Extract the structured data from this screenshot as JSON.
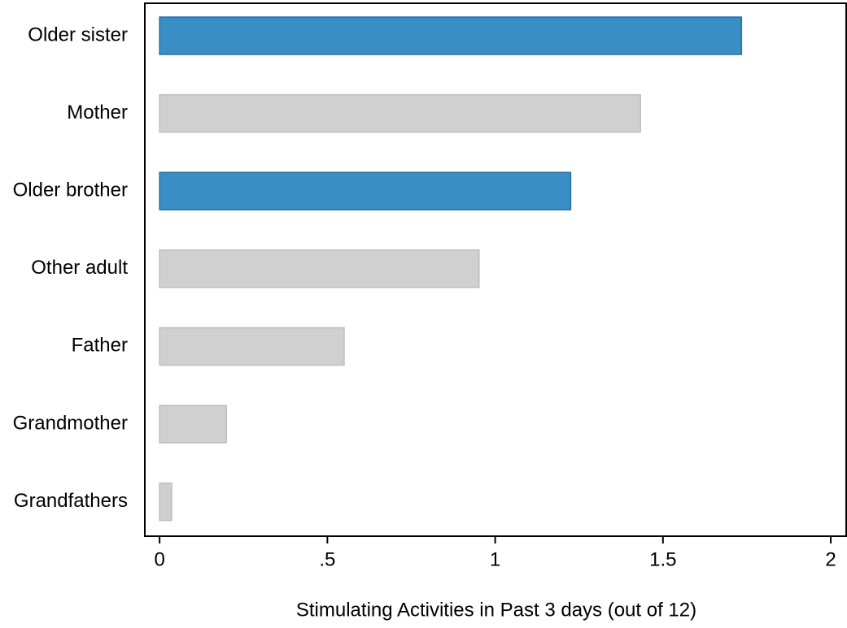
{
  "chart_data": {
    "type": "bar",
    "orientation": "horizontal",
    "x_label": "Stimulating Activities in Past 3 days (out of 12)",
    "categories": [
      "Older sister",
      "Mother",
      "Older brother",
      "Other adult",
      "Father",
      "Grandmother",
      "Grandfathers"
    ],
    "values": [
      1.734,
      1.433,
      1.225,
      0.952,
      0.55,
      0.199,
      0.036
    ],
    "colors": [
      "#3a8ec6",
      "#d0d0d0",
      "#3a8ec6",
      "#d0d0d0",
      "#d0d0d0",
      "#d0d0d0",
      "#d0d0d0"
    ],
    "xlim": [
      -0.044,
      2.046
    ],
    "xticks": [
      0,
      {
        "value": 0.5,
        "label": ".5"
      },
      1,
      1.5,
      2
    ]
  }
}
